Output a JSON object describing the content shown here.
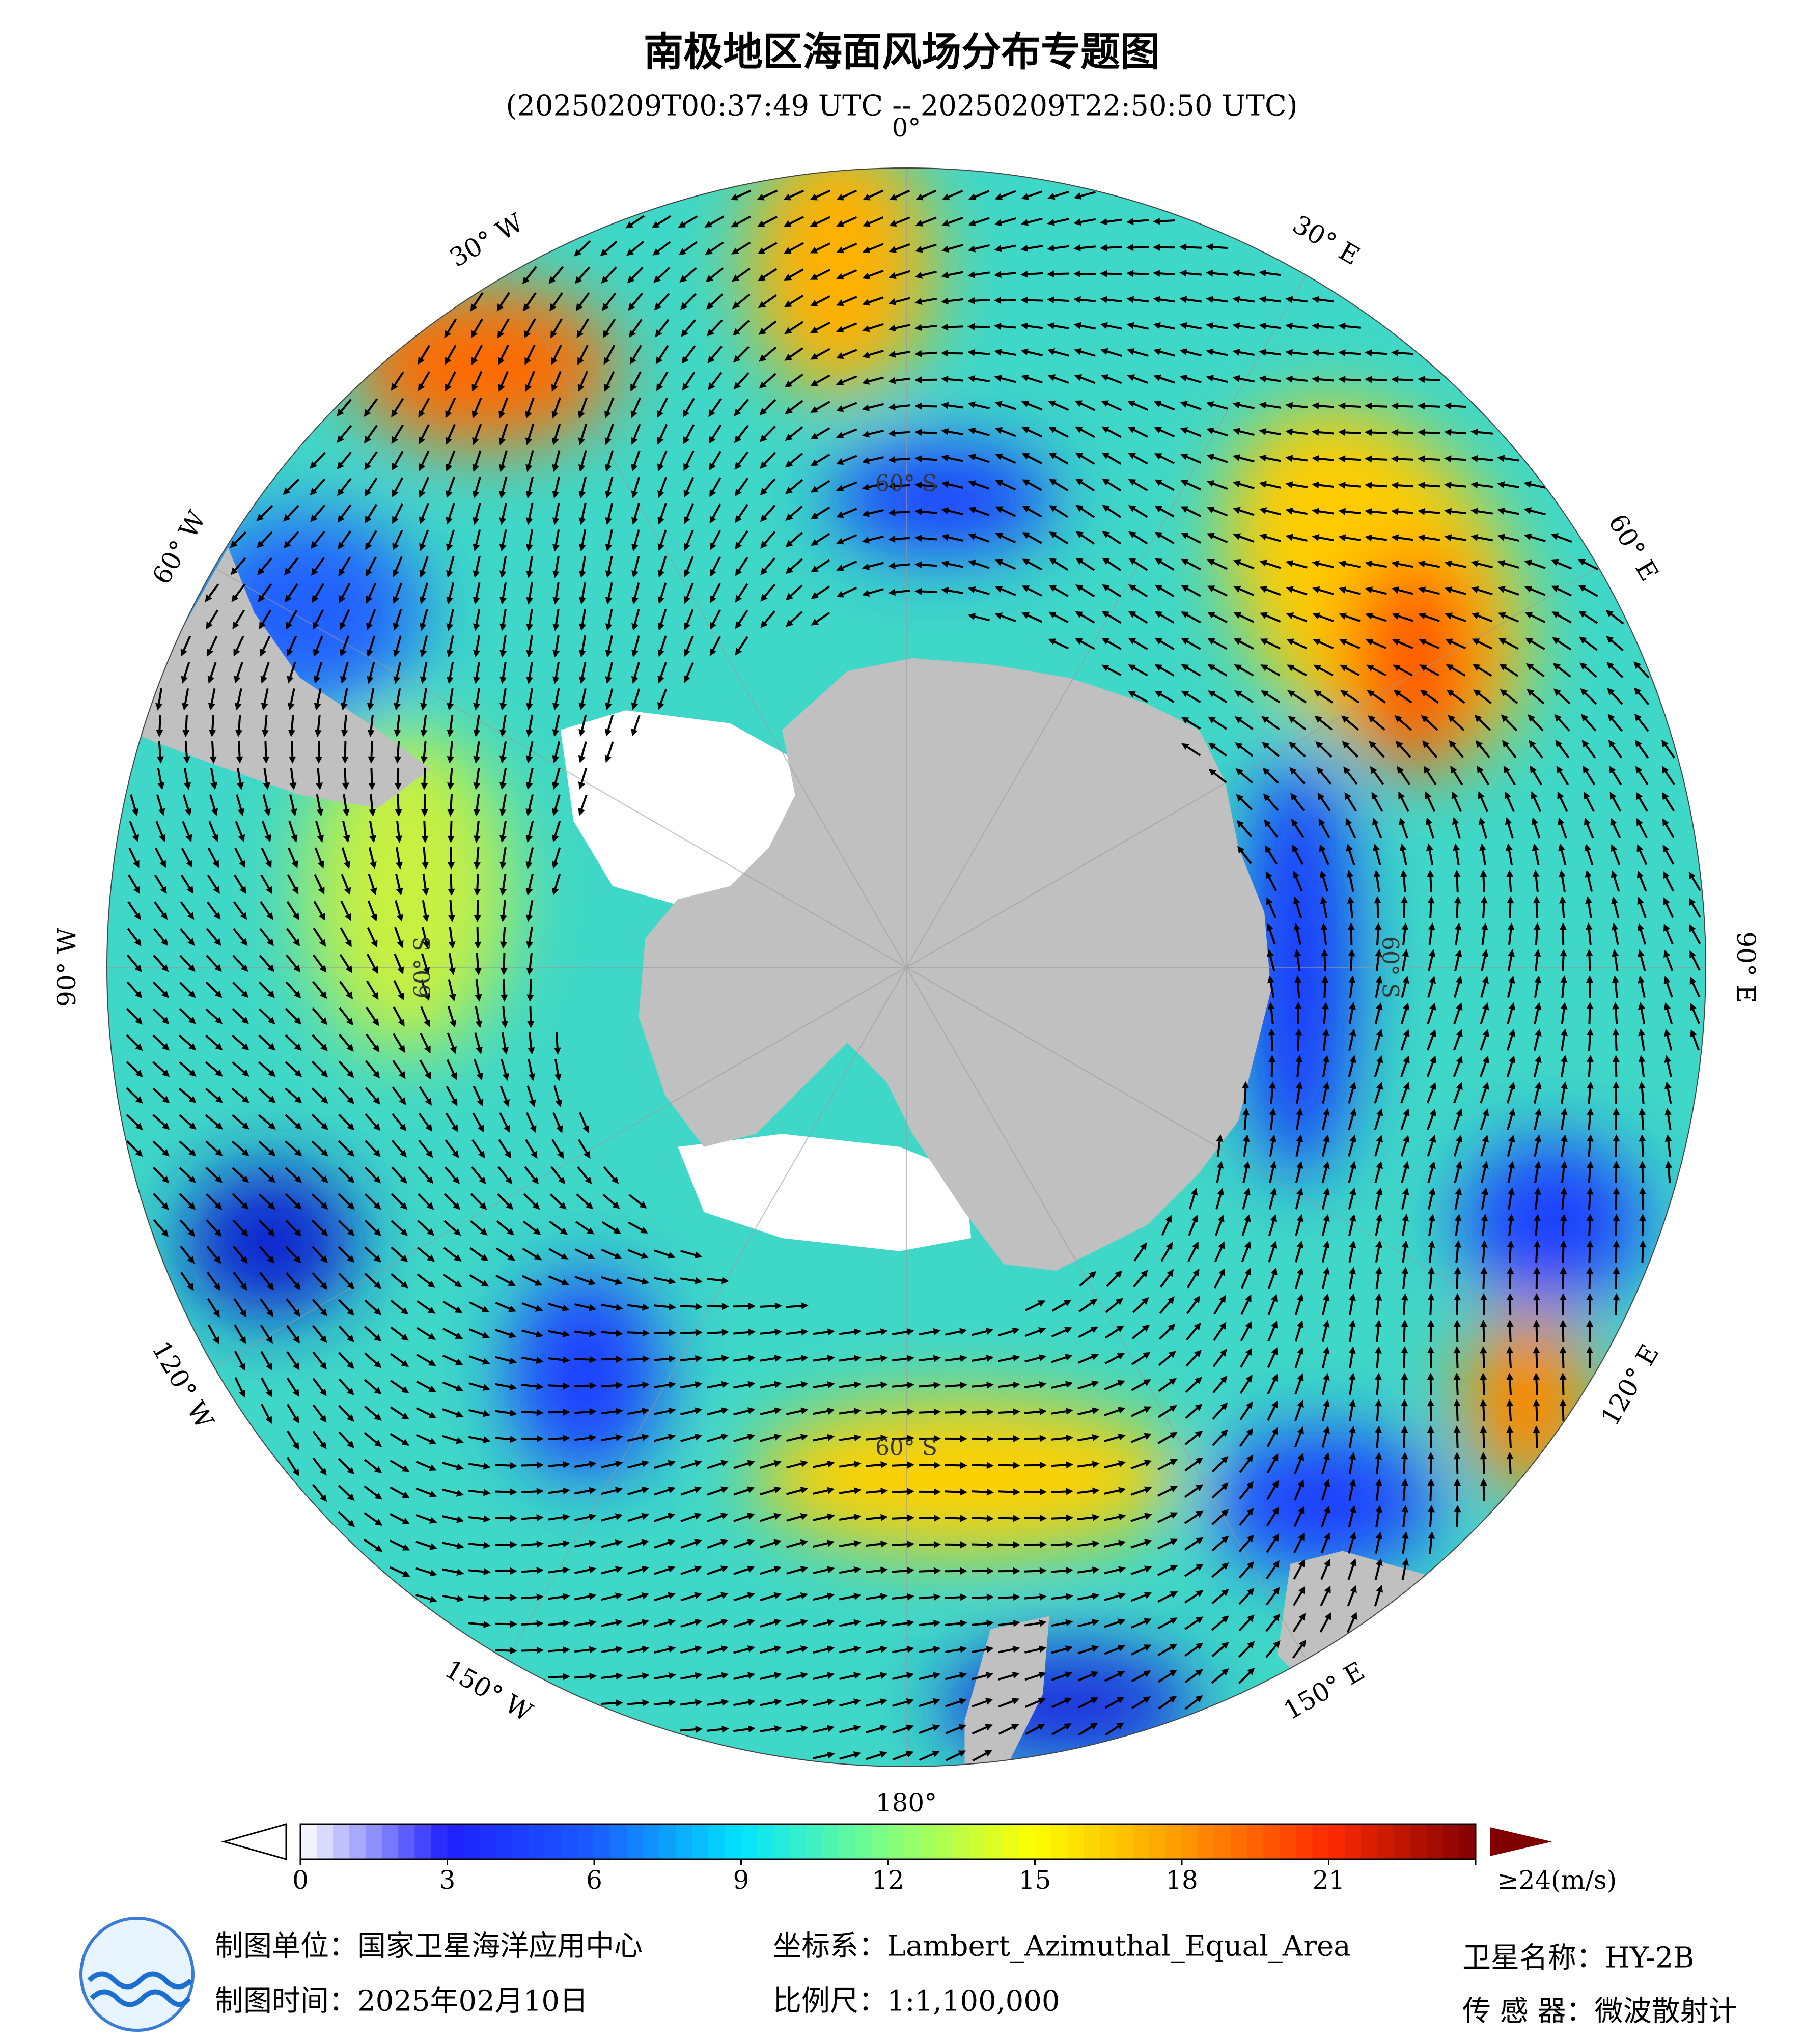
{
  "header": {
    "title": "南极地区海面风场分布专题图",
    "subtitle": "(20250209T00:37:49 UTC -- 20250209T22:50:50 UTC)"
  },
  "map": {
    "longitude_labels": [
      "0°",
      "30° E",
      "60° E",
      "90° E",
      "120° E",
      "150° E",
      "180°",
      "150° W",
      "120° W",
      "90° W",
      "60° W",
      "30° W"
    ],
    "latitude_labels": [
      "60° S",
      "60° S",
      "60° S",
      "60° S"
    ]
  },
  "colorbar": {
    "range": [
      0,
      24
    ],
    "ticks": [
      0,
      3,
      6,
      9,
      12,
      15,
      18,
      21,
      {
        "value": 24,
        "label": "≥24(m/s)"
      }
    ],
    "colors": [
      "#ffffff",
      "#2020ff",
      "#1a5cff",
      "#00e5ff",
      "#80ff80",
      "#ffff00",
      "#ff9900",
      "#ff2a00",
      "#800000"
    ]
  },
  "footer": {
    "unit": "制图单位：国家卫星海洋应用中心",
    "time": "制图时间：2025年02月10日",
    "crs": "坐标系：Lambert_Azimuthal_Equal_Area",
    "scale": "比例尺：1:1,100,000",
    "satellite": "卫星名称：HY-2B",
    "sensor": "传 感 器：微波散射计"
  }
}
